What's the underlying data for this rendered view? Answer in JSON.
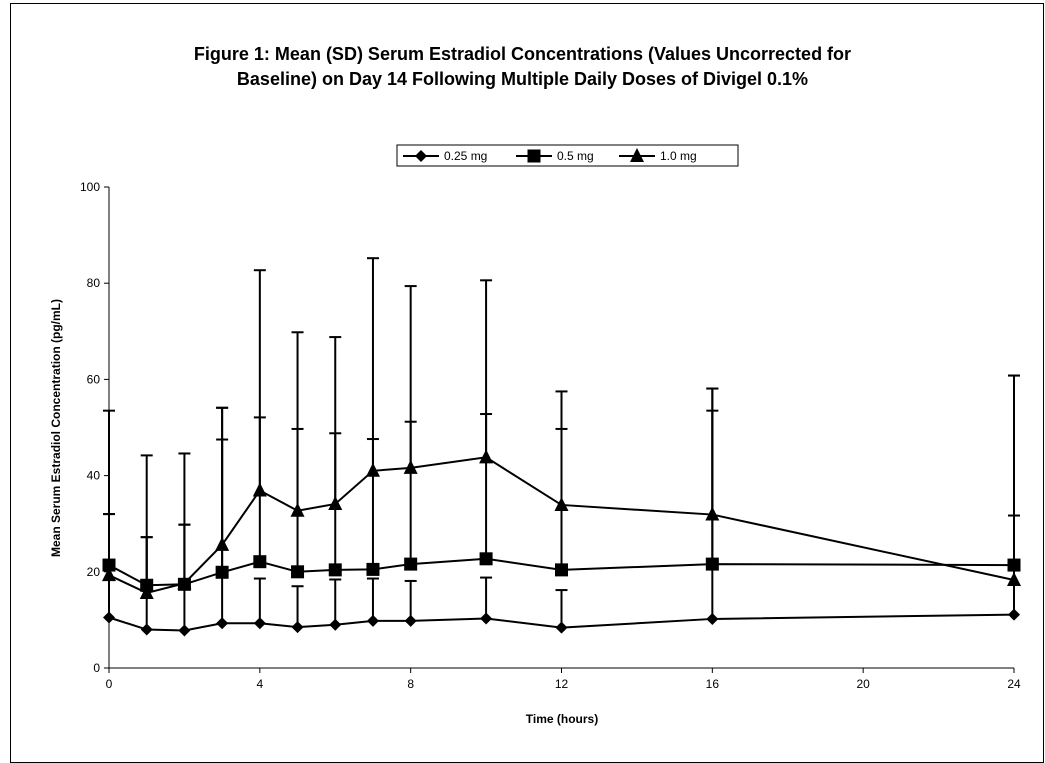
{
  "chart_data": {
    "type": "line",
    "title_line1": "Figure 1:  Mean (SD) Serum Estradiol Concentrations (Values Uncorrected for",
    "title_line2": "Baseline) on Day 14 Following Multiple Daily Doses of Divigel 0.1%",
    "xlabel": "Time (hours)",
    "ylabel": "Mean Serum Estradiol Concentration (pg/mL)",
    "xlim": [
      0,
      24
    ],
    "ylim": [
      0,
      100
    ],
    "xticks": [
      0,
      4,
      8,
      12,
      16,
      20,
      24
    ],
    "yticks": [
      0,
      20,
      40,
      60,
      80,
      100
    ],
    "grid": false,
    "legend_position": "top-center",
    "x": [
      0,
      1,
      2,
      3,
      4,
      5,
      6,
      7,
      8,
      10,
      12,
      16,
      24
    ],
    "series": [
      {
        "name": "0.25 mg",
        "marker": "diamond",
        "values": [
          10.5,
          8.0,
          7.8,
          9.3,
          9.3,
          8.5,
          9.0,
          9.8,
          9.8,
          10.3,
          8.4,
          10.2,
          11.1
        ],
        "sd_upper": [
          32.0,
          27.2,
          29.8,
          47.5,
          18.6,
          17.0,
          18.4,
          18.6,
          18.1,
          18.8,
          16.2,
          53.5,
          31.7
        ]
      },
      {
        "name": "0.5 mg",
        "marker": "square",
        "values": [
          21.4,
          17.2,
          17.4,
          19.9,
          22.1,
          20.0,
          20.4,
          20.5,
          21.6,
          22.7,
          20.4,
          21.6,
          21.4
        ],
        "sd_upper": [
          53.5,
          44.2,
          44.6,
          54.1,
          52.1,
          49.7,
          48.8,
          47.6,
          51.2,
          52.8,
          49.7,
          58.1,
          60.8
        ]
      },
      {
        "name": "1.0 mg",
        "marker": "triangle",
        "values": [
          19.3,
          15.6,
          17.6,
          25.6,
          36.9,
          32.7,
          34.1,
          41.0,
          41.6,
          43.8,
          33.9,
          31.9,
          18.3
        ],
        "sd_upper": [
          32.0,
          27.2,
          29.8,
          54.1,
          82.7,
          69.8,
          68.8,
          85.2,
          79.4,
          80.6,
          57.5,
          58.1,
          60.8
        ]
      }
    ]
  }
}
